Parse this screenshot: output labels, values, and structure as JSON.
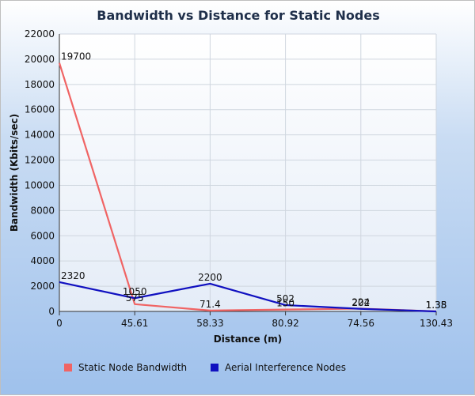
{
  "chart_data": {
    "type": "line",
    "title": "Bandwidth vs Distance for Static Nodes",
    "xlabel": "Distance (m)",
    "ylabel": "Bandwidth (Kbits/sec)",
    "categories": [
      "0",
      "45.61",
      "58.33",
      "80.92",
      "74.56",
      "130.43"
    ],
    "ylim": [
      0,
      22000
    ],
    "yticks": [
      "0",
      "2000",
      "4000",
      "6000",
      "8000",
      "10000",
      "12000",
      "14000",
      "16000",
      "18000",
      "20000",
      "22000"
    ],
    "grid": true,
    "legend_position": "bottom",
    "series": [
      {
        "name": "Static Node Bandwidth",
        "color": "#f06464",
        "values": [
          19700,
          575,
          71.4,
          150,
          224,
          1.35
        ],
        "labels": [
          "19700",
          "575",
          "71.4",
          "150",
          "224",
          "1.35"
        ]
      },
      {
        "name": "Aerial Interference Nodes",
        "color": "#1010c0",
        "values": [
          2320,
          1050,
          2200,
          502,
          202,
          1.38
        ],
        "labels": [
          "2320",
          "1050",
          "2200",
          "502",
          "202",
          "1.38"
        ]
      }
    ]
  }
}
